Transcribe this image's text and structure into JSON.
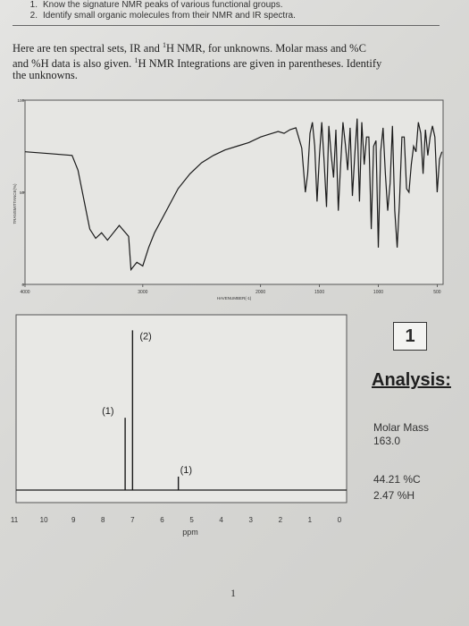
{
  "objectives": [
    {
      "num": "1.",
      "text": "Know the signature NMR peaks of various functional groups."
    },
    {
      "num": "2.",
      "text": "Identify small organic molecules from their NMR and IR spectra."
    }
  ],
  "intro": {
    "line1": "Here are ten spectral sets, IR and ",
    "sup1": "1",
    "line1b": "H NMR, for unknowns.  Molar mass and %C",
    "line2": "and %H data is also given.  ",
    "sup2": "1",
    "line2b": "H NMR Integrations are given in parentheses.  Identify",
    "line3": "the unknowns."
  },
  "ir": {
    "x_ticks": [
      "4000",
      "3000",
      "2000",
      "1500",
      "1000",
      "500"
    ],
    "y_ticks": [
      "100",
      "50",
      "0"
    ],
    "xlabel": "HAVENUMBER(-1)",
    "ylabel": "TRANSMITTANCE(%)"
  },
  "nmr": {
    "x_ticks": [
      "11",
      "10",
      "9",
      "8",
      "7",
      "6",
      "5",
      "4",
      "3",
      "2",
      "1",
      "0"
    ],
    "xlabel": "ppm",
    "integrations": [
      "(2)",
      "(1)",
      "(1)"
    ]
  },
  "spectrum_number": "1",
  "analysis": {
    "title": "Analysis:",
    "molar_mass_label": "Molar Mass",
    "molar_mass_value": "163.0",
    "percent_c": "44.21 %C",
    "percent_h": "2.47 %H"
  },
  "page_number": "1",
  "chart_data": [
    {
      "type": "line",
      "title": "",
      "xlabel": "HAVENUMBER(-1)",
      "ylabel": "TRANSMITTANCE(%)",
      "xlim": [
        4000,
        450
      ],
      "ylim": [
        0,
        100
      ],
      "x": [
        4000,
        3800,
        3600,
        3550,
        3450,
        3400,
        3350,
        3300,
        3200,
        3120,
        3100,
        3050,
        3000,
        2950,
        2900,
        2800,
        2700,
        2600,
        2500,
        2400,
        2300,
        2200,
        2100,
        2000,
        1950,
        1900,
        1850,
        1800,
        1750,
        1700,
        1650,
        1620,
        1600,
        1580,
        1560,
        1540,
        1520,
        1500,
        1480,
        1460,
        1440,
        1420,
        1400,
        1380,
        1360,
        1340,
        1320,
        1300,
        1280,
        1260,
        1240,
        1220,
        1200,
        1180,
        1160,
        1140,
        1120,
        1100,
        1080,
        1060,
        1040,
        1020,
        1000,
        980,
        960,
        940,
        920,
        900,
        880,
        860,
        840,
        820,
        800,
        780,
        760,
        740,
        720,
        700,
        680,
        660,
        640,
        620,
        600,
        580,
        560,
        540,
        520,
        500,
        480,
        460
      ],
      "y": [
        72,
        71,
        70,
        62,
        30,
        25,
        28,
        24,
        32,
        26,
        8,
        12,
        10,
        20,
        28,
        40,
        52,
        60,
        66,
        70,
        73,
        75,
        77,
        80,
        81,
        82,
        83,
        82,
        84,
        85,
        74,
        50,
        60,
        82,
        88,
        75,
        45,
        70,
        88,
        66,
        42,
        86,
        70,
        58,
        84,
        40,
        65,
        88,
        76,
        62,
        85,
        48,
        70,
        90,
        45,
        88,
        65,
        80,
        80,
        30,
        75,
        78,
        20,
        72,
        85,
        60,
        40,
        55,
        86,
        40,
        20,
        45,
        80,
        80,
        52,
        50,
        65,
        75,
        72,
        88,
        82,
        60,
        84,
        70,
        80,
        86,
        80,
        50,
        68,
        72
      ]
    },
    {
      "type": "line",
      "title": "",
      "xlabel": "ppm",
      "xlim": [
        11,
        0
      ],
      "peaks": [
        {
          "ppm": 7.25,
          "height": 0.43,
          "integration": "(1)"
        },
        {
          "ppm": 7.0,
          "height": 0.95,
          "integration": "(2)"
        },
        {
          "ppm": 5.45,
          "height": 0.08,
          "integration": "(1)"
        }
      ]
    }
  ]
}
